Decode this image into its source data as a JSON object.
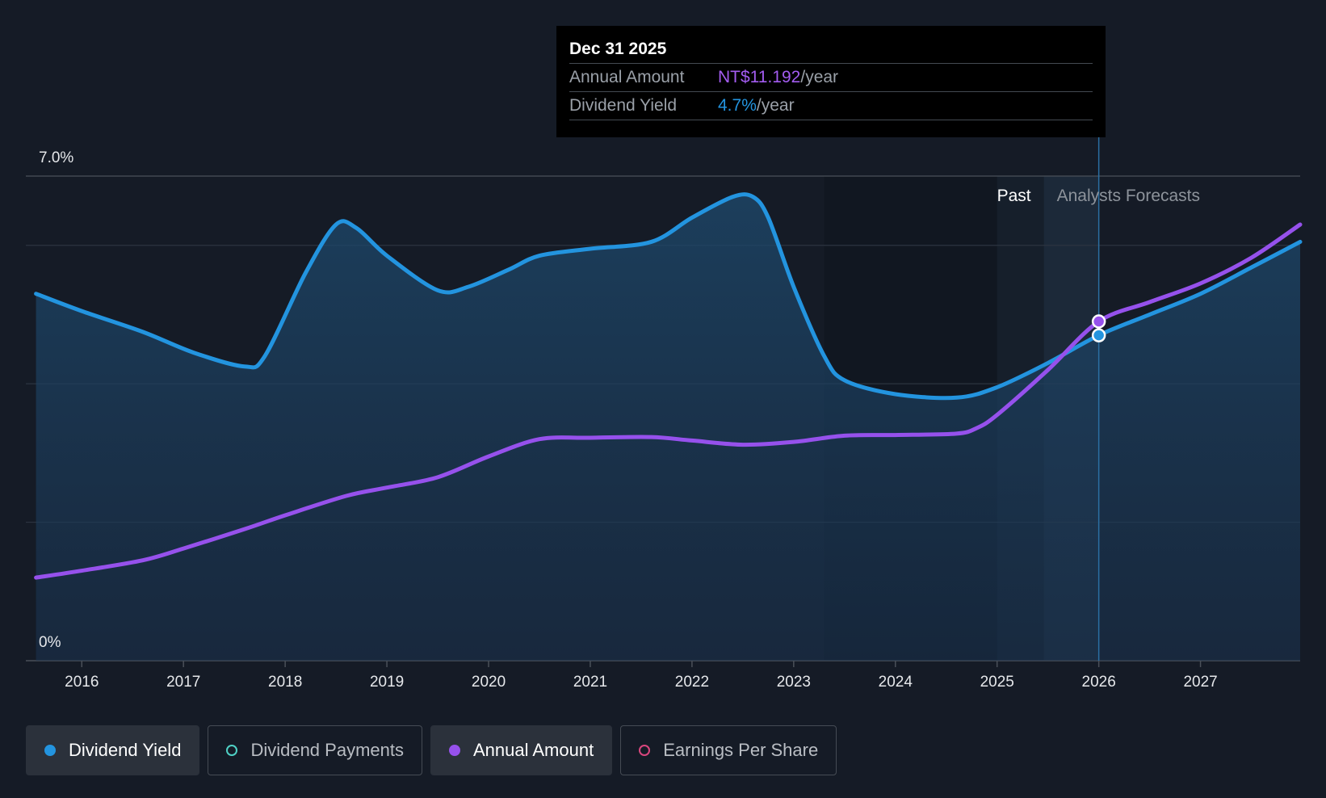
{
  "chart_data": {
    "type": "line",
    "y_axis": {
      "top_label": "7.0%",
      "bottom_label": "0%",
      "ylim": [
        0,
        7.0
      ],
      "grid": true
    },
    "x_axis": {
      "ticks": [
        "2016",
        "2017",
        "2018",
        "2019",
        "2020",
        "2021",
        "2022",
        "2023",
        "2024",
        "2025",
        "2026",
        "2027"
      ],
      "xlim": [
        2015.45,
        2027.98
      ]
    },
    "regions": {
      "past_label": "Past",
      "forecast_label": "Analysts Forecasts",
      "past_end": 2025.46,
      "forecast_start": 2025.46,
      "highlight_start": 2025.0,
      "current": 2026.0
    },
    "series": [
      {
        "name": "Dividend Yield",
        "color": "#2394df",
        "area": true,
        "x": [
          2015.55,
          2016.0,
          2016.6,
          2017.1,
          2017.6,
          2017.8,
          2018.2,
          2018.5,
          2018.7,
          2019.0,
          2019.5,
          2019.8,
          2020.2,
          2020.5,
          2021.0,
          2021.6,
          2022.0,
          2022.4,
          2022.6,
          2022.75,
          2023.0,
          2023.3,
          2023.5,
          2024.0,
          2024.6,
          2025.0,
          2025.5,
          2026.0,
          2026.5,
          2027.0,
          2027.5,
          2027.98
        ],
        "y": [
          5.3,
          5.05,
          4.75,
          4.45,
          4.25,
          4.4,
          5.6,
          6.3,
          6.25,
          5.85,
          5.35,
          5.4,
          5.65,
          5.85,
          5.95,
          6.05,
          6.4,
          6.7,
          6.7,
          6.4,
          5.4,
          4.4,
          4.05,
          3.85,
          3.8,
          3.95,
          4.3,
          4.7,
          5.0,
          5.3,
          5.68,
          6.05
        ]
      },
      {
        "name": "Annual Amount",
        "color": "#9651ec",
        "area": false,
        "x": [
          2015.55,
          2016.0,
          2016.6,
          2017.0,
          2017.6,
          2018.0,
          2018.6,
          2019.0,
          2019.5,
          2020.0,
          2020.5,
          2021.0,
          2021.6,
          2022.0,
          2022.5,
          2023.0,
          2023.5,
          2024.0,
          2024.6,
          2024.8,
          2025.0,
          2025.5,
          2026.0,
          2026.5,
          2027.0,
          2027.5,
          2027.98
        ],
        "y": [
          1.2,
          1.3,
          1.45,
          1.62,
          1.9,
          2.1,
          2.38,
          2.5,
          2.65,
          2.95,
          3.2,
          3.22,
          3.23,
          3.18,
          3.12,
          3.16,
          3.25,
          3.26,
          3.28,
          3.36,
          3.55,
          4.2,
          4.9,
          5.18,
          5.45,
          5.82,
          6.3
        ]
      }
    ],
    "markers": [
      {
        "series": "Annual Amount",
        "x": 2026.0,
        "y": 4.9
      },
      {
        "series": "Dividend Yield",
        "x": 2026.0,
        "y": 4.7
      }
    ]
  },
  "tooltip": {
    "date": "Dec 31 2025",
    "rows": [
      {
        "label": "Annual Amount",
        "value": "NT$11.192",
        "unit": "/year",
        "color": "#a35cf0"
      },
      {
        "label": "Dividend Yield",
        "value": "4.7%",
        "unit": "/year",
        "color": "#2394df"
      }
    ]
  },
  "legend": [
    {
      "label": "Dividend Yield",
      "active": true,
      "dot_color": "#2394df",
      "filled": true
    },
    {
      "label": "Dividend Payments",
      "active": false,
      "dot_color": "#4fd1c5",
      "filled": false
    },
    {
      "label": "Annual Amount",
      "active": true,
      "dot_color": "#9651ec",
      "filled": true
    },
    {
      "label": "Earnings Per Share",
      "active": false,
      "dot_color": "#d9467d",
      "filled": false
    }
  ]
}
